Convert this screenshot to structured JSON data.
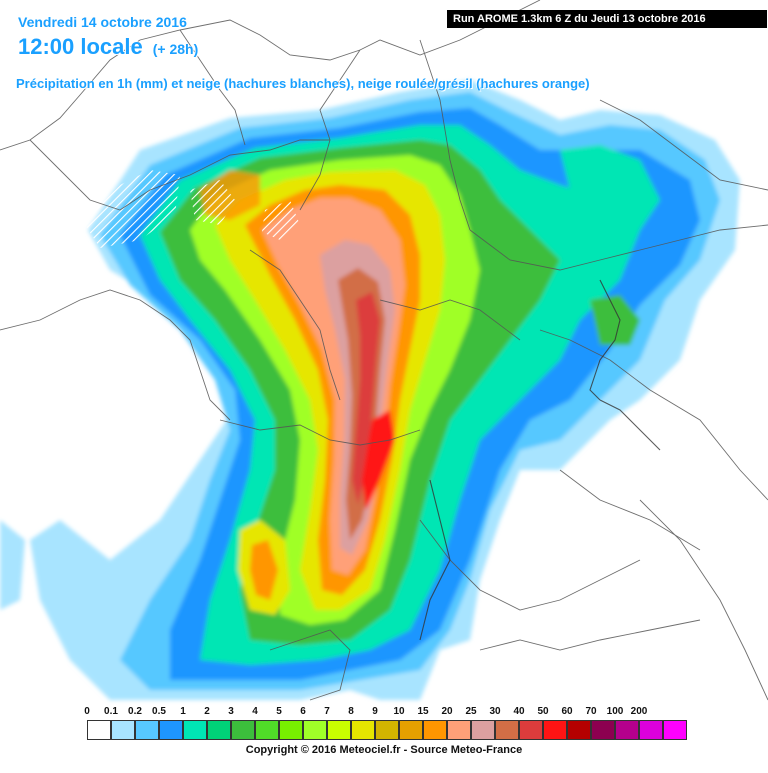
{
  "header": {
    "date": "Vendredi 14 octobre 2016",
    "time": "12:00 locale",
    "offset": "(+ 28h)",
    "parameter": "Précipitation en 1h (mm) et neige (hachures blanches), neige roulée/grésil (hachures orange)",
    "run": "Run AROME 1.3km 6 Z du Jeudi 13 octobre 2016"
  },
  "legend": {
    "labels": [
      "0",
      "0.1",
      "0.2",
      "0.5",
      "1",
      "2",
      "3",
      "4",
      "5",
      "6",
      "7",
      "8",
      "9",
      "10",
      "15",
      "20",
      "25",
      "30",
      "40",
      "50",
      "60",
      "70",
      "100",
      "200"
    ],
    "colors": [
      "#ffffff",
      "#a8e4ff",
      "#57c8ff",
      "#1e96ff",
      "#00e6b4",
      "#00d278",
      "#3cbe3c",
      "#50dc28",
      "#78f000",
      "#a0ff28",
      "#c8ff00",
      "#e6e600",
      "#d2b400",
      "#e6a000",
      "#ff9600",
      "#ffa078",
      "#dca0a0",
      "#d26e46",
      "#dc3c3c",
      "#ff1414",
      "#b40000",
      "#8c0050",
      "#b4008c",
      "#dc00dc",
      "#ff00ff"
    ]
  },
  "copyright": "Copyright © 2016 Meteociel.fr - Source Meteo-France",
  "icons": [
    "country-border-lines",
    "coast-lines",
    "precipitation-field",
    "snow-hatching"
  ]
}
